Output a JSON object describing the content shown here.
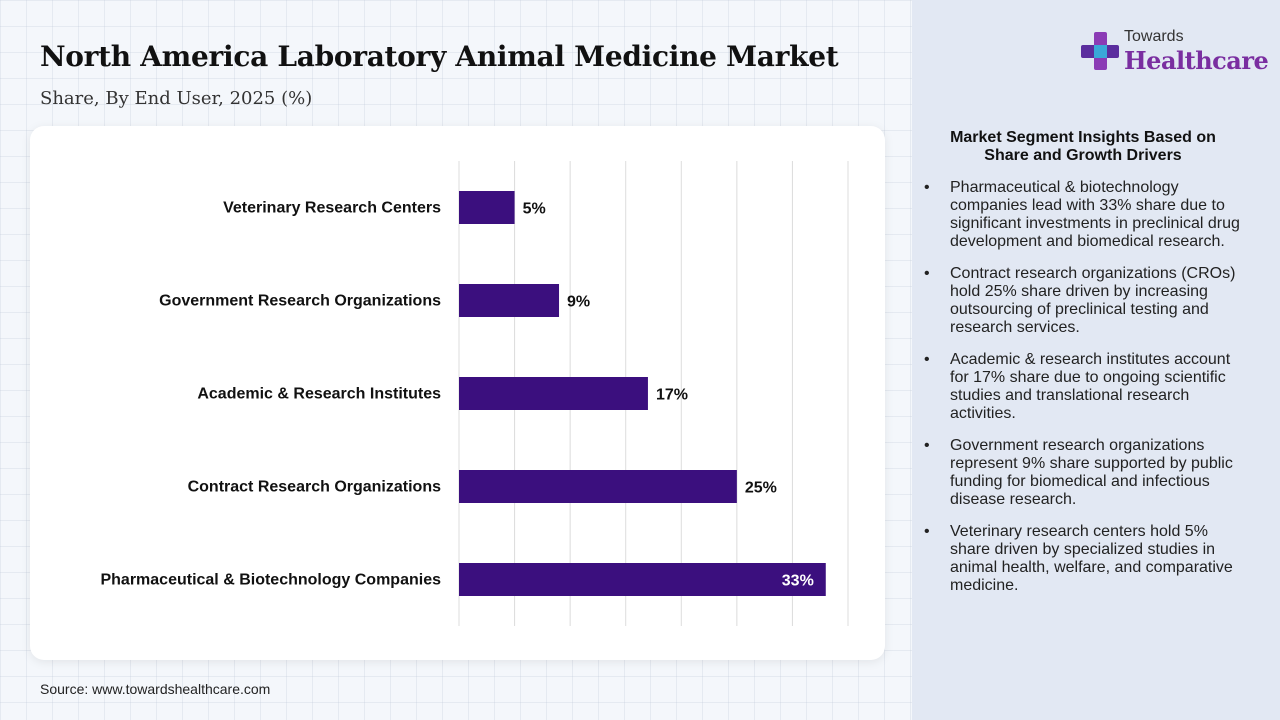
{
  "title": "North America Laboratory Animal Medicine Market",
  "subtitle": "Share, By End User, 2025 (%)",
  "source": "Source: www.towardshealthcare.com",
  "logo": {
    "top_text": "Towards",
    "bottom_text": "Healthcare",
    "icon": "plus-cross-icon"
  },
  "insights": {
    "title": "Market Segment Insights Based on Share and Growth Drivers",
    "items": [
      "Pharmaceutical & biotechnology companies lead with 33% share due to significant investments in preclinical drug development and biomedical research.",
      "Contract research organizations (CROs) hold 25% share driven by increasing outsourcing of preclinical testing and research services.",
      "Academic & research institutes account for 17% share due to ongoing scientific studies and translational research activities.",
      "Government research organizations represent 9% share supported by public funding for biomedical and infectious disease research.",
      "Veterinary research centers hold 5% share driven by specialized studies in animal health, welfare, and comparative medicine."
    ]
  },
  "colors": {
    "bar": "#3b0f7e",
    "accent": "#7a2ea0",
    "panel": "#e2e8f3"
  },
  "chart_data": {
    "type": "bar",
    "orientation": "horizontal",
    "categories": [
      "Veterinary Research Centers",
      "Government Research Organizations",
      "Academic & Research Institutes",
      "Contract Research Organizations",
      "Pharmaceutical & Biotechnology Companies"
    ],
    "values": [
      5,
      9,
      17,
      25,
      33
    ],
    "value_labels": [
      "5%",
      "9%",
      "17%",
      "25%",
      "33%"
    ],
    "xlim": [
      0,
      35
    ],
    "grid": true
  }
}
